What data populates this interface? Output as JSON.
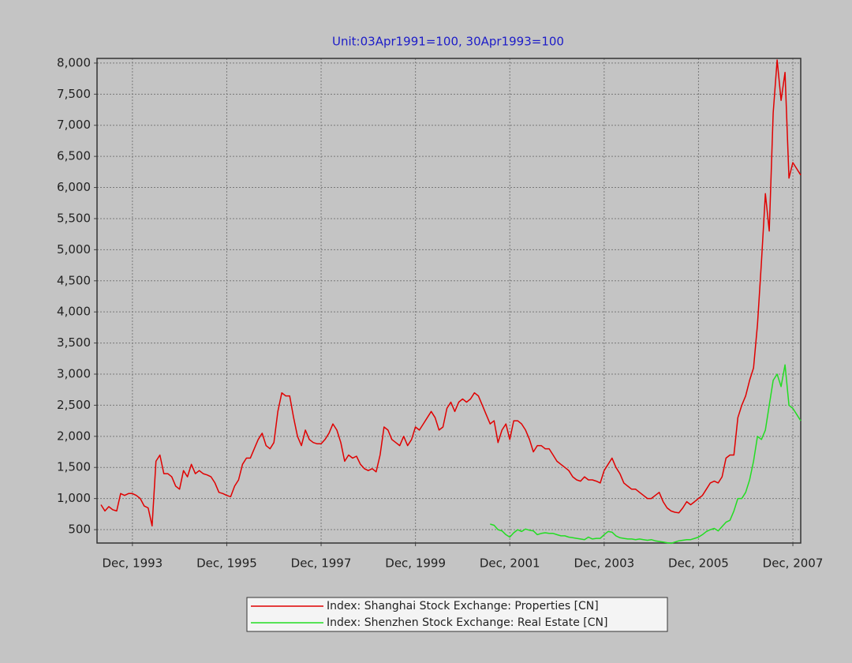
{
  "chart_data": {
    "type": "line",
    "title": "Unit:03Apr1991=100, 30Apr1993=100",
    "x": [
      "1993-04",
      "1993-05",
      "1993-06",
      "1993-07",
      "1993-08",
      "1993-09",
      "1993-10",
      "1993-11",
      "1993-12",
      "1994-01",
      "1994-02",
      "1994-03",
      "1994-04",
      "1994-05",
      "1994-06",
      "1994-07",
      "1994-08",
      "1994-09",
      "1994-10",
      "1994-11",
      "1994-12",
      "1995-01",
      "1995-02",
      "1995-03",
      "1995-04",
      "1995-05",
      "1995-06",
      "1995-07",
      "1995-08",
      "1995-09",
      "1995-10",
      "1995-11",
      "1995-12",
      "1996-01",
      "1996-02",
      "1996-03",
      "1996-04",
      "1996-05",
      "1996-06",
      "1996-07",
      "1996-08",
      "1996-09",
      "1996-10",
      "1996-11",
      "1996-12",
      "1997-01",
      "1997-02",
      "1997-03",
      "1997-04",
      "1997-05",
      "1997-06",
      "1997-07",
      "1997-08",
      "1997-09",
      "1997-10",
      "1997-11",
      "1997-12",
      "1998-01",
      "1998-02",
      "1998-03",
      "1998-04",
      "1998-05",
      "1998-06",
      "1998-07",
      "1998-08",
      "1998-09",
      "1998-10",
      "1998-11",
      "1998-12",
      "1999-01",
      "1999-02",
      "1999-03",
      "1999-04",
      "1999-05",
      "1999-06",
      "1999-07",
      "1999-08",
      "1999-09",
      "1999-10",
      "1999-11",
      "1999-12",
      "2000-01",
      "2000-02",
      "2000-03",
      "2000-04",
      "2000-05",
      "2000-06",
      "2000-07",
      "2000-08",
      "2000-09",
      "2000-10",
      "2000-11",
      "2000-12",
      "2001-01",
      "2001-02",
      "2001-03",
      "2001-04",
      "2001-05",
      "2001-06",
      "2001-07",
      "2001-08",
      "2001-09",
      "2001-10",
      "2001-11",
      "2001-12",
      "2002-01",
      "2002-02",
      "2002-03",
      "2002-04",
      "2002-05",
      "2002-06",
      "2002-07",
      "2002-08",
      "2002-09",
      "2002-10",
      "2002-11",
      "2002-12",
      "2003-01",
      "2003-02",
      "2003-03",
      "2003-04",
      "2003-05",
      "2003-06",
      "2003-07",
      "2003-08",
      "2003-09",
      "2003-10",
      "2003-11",
      "2003-12",
      "2004-01",
      "2004-02",
      "2004-03",
      "2004-04",
      "2004-05",
      "2004-06",
      "2004-07",
      "2004-08",
      "2004-09",
      "2004-10",
      "2004-11",
      "2004-12",
      "2005-01",
      "2005-02",
      "2005-03",
      "2005-04",
      "2005-05",
      "2005-06",
      "2005-07",
      "2005-08",
      "2005-09",
      "2005-10",
      "2005-11",
      "2005-12",
      "2006-01",
      "2006-02",
      "2006-03",
      "2006-04",
      "2006-05",
      "2006-06",
      "2006-07",
      "2006-08",
      "2006-09",
      "2006-10",
      "2006-11",
      "2006-12",
      "2007-01",
      "2007-02",
      "2007-03",
      "2007-04",
      "2007-05",
      "2007-06",
      "2007-07",
      "2007-08",
      "2007-09",
      "2007-10",
      "2007-11",
      "2007-12",
      "2008-01",
      "2008-02"
    ],
    "series": [
      {
        "name": "Index: Shanghai Stock Exchange: Properties [CN]",
        "color": "#e00000",
        "values": [
          900,
          800,
          870,
          820,
          800,
          1080,
          1050,
          1080,
          1080,
          1050,
          1000,
          880,
          850,
          560,
          1600,
          1700,
          1400,
          1400,
          1350,
          1200,
          1150,
          1450,
          1350,
          1550,
          1400,
          1450,
          1400,
          1380,
          1350,
          1250,
          1100,
          1080,
          1050,
          1030,
          1200,
          1300,
          1550,
          1650,
          1650,
          1800,
          1950,
          2050,
          1850,
          1800,
          1900,
          2400,
          2700,
          2650,
          2650,
          2300,
          2000,
          1850,
          2100,
          1950,
          1900,
          1880,
          1880,
          1950,
          2050,
          2200,
          2100,
          1900,
          1600,
          1700,
          1650,
          1680,
          1550,
          1480,
          1450,
          1480,
          1430,
          1700,
          2150,
          2100,
          1950,
          1900,
          1850,
          2000,
          1850,
          1950,
          2150,
          2100,
          2200,
          2300,
          2400,
          2300,
          2100,
          2150,
          2450,
          2550,
          2400,
          2550,
          2600,
          2550,
          2600,
          2700,
          2650,
          2500,
          2350,
          2200,
          2250,
          1900,
          2100,
          2200,
          1950,
          2250,
          2250,
          2200,
          2100,
          1950,
          1750,
          1850,
          1850,
          1800,
          1800,
          1700,
          1600,
          1550,
          1500,
          1450,
          1350,
          1300,
          1280,
          1350,
          1300,
          1300,
          1280,
          1250,
          1450,
          1550,
          1650,
          1500,
          1400,
          1250,
          1200,
          1150,
          1150,
          1100,
          1050,
          1000,
          1000,
          1050,
          1100,
          950,
          850,
          800,
          780,
          770,
          850,
          950,
          900,
          950,
          1000,
          1050,
          1150,
          1250,
          1280,
          1250,
          1350,
          1650,
          1700,
          1700,
          2300,
          2500,
          2650,
          2900,
          3100,
          3800,
          4800,
          5900,
          5300,
          7200,
          8050,
          7400,
          7850,
          6150,
          6400,
          6300,
          6200
        ]
      },
      {
        "name": "Index: Shenzhen Stock Exchange: Real Estate [CN]",
        "color": "#22dd22",
        "values": [
          null,
          null,
          null,
          null,
          null,
          null,
          null,
          null,
          null,
          null,
          null,
          null,
          null,
          null,
          null,
          null,
          null,
          null,
          null,
          null,
          null,
          null,
          null,
          null,
          null,
          null,
          null,
          null,
          null,
          null,
          null,
          null,
          null,
          null,
          null,
          null,
          null,
          null,
          null,
          null,
          null,
          null,
          null,
          null,
          null,
          null,
          null,
          null,
          null,
          null,
          null,
          null,
          null,
          null,
          null,
          null,
          null,
          null,
          null,
          null,
          null,
          null,
          null,
          null,
          null,
          null,
          null,
          null,
          null,
          null,
          null,
          null,
          null,
          null,
          null,
          null,
          null,
          null,
          null,
          null,
          null,
          null,
          null,
          null,
          null,
          null,
          null,
          null,
          null,
          null,
          null,
          null,
          null,
          null,
          null,
          null,
          null,
          null,
          null,
          590,
          570,
          500,
          480,
          420,
          380,
          450,
          500,
          470,
          510,
          490,
          480,
          420,
          440,
          450,
          440,
          440,
          420,
          400,
          400,
          380,
          370,
          360,
          350,
          340,
          380,
          350,
          360,
          360,
          420,
          470,
          460,
          400,
          370,
          360,
          350,
          350,
          340,
          350,
          340,
          330,
          340,
          320,
          310,
          300,
          290,
          280,
          300,
          320,
          330,
          340,
          340,
          360,
          380,
          420,
          470,
          500,
          520,
          480,
          550,
          620,
          650,
          800,
          1000,
          1000,
          1100,
          1300,
          1600,
          2000,
          1950,
          2100,
          2500,
          2900,
          3000,
          2800,
          3150,
          2500,
          2450,
          2350,
          2250
        ]
      }
    ],
    "xlim": [
      "1993-03",
      "2008-02"
    ],
    "xticks": [
      {
        "value": "1993-12",
        "label": "Dec, 1993"
      },
      {
        "value": "1995-12",
        "label": "Dec, 1995"
      },
      {
        "value": "1997-12",
        "label": "Dec, 1997"
      },
      {
        "value": "1999-12",
        "label": "Dec, 1999"
      },
      {
        "value": "2001-12",
        "label": "Dec, 2001"
      },
      {
        "value": "2003-12",
        "label": "Dec, 2003"
      },
      {
        "value": "2005-12",
        "label": "Dec, 2005"
      },
      {
        "value": "2007-12",
        "label": "Dec, 2007"
      }
    ],
    "ylim": [
      285,
      8075
    ],
    "yticks": [
      500,
      {
        "value": 1000,
        "label": "1,000"
      },
      {
        "value": 1500,
        "label": "1,500"
      },
      {
        "value": 2000,
        "label": "2,000"
      },
      {
        "value": 2500,
        "label": "2,500"
      },
      {
        "value": 3000,
        "label": "3,000"
      },
      {
        "value": 3500,
        "label": "3,500"
      },
      {
        "value": 4000,
        "label": "4,000"
      },
      {
        "value": 4500,
        "label": "4,500"
      },
      {
        "value": 5000,
        "label": "5,000"
      },
      {
        "value": 5500,
        "label": "5,500"
      },
      {
        "value": 6000,
        "label": "6,000"
      },
      {
        "value": 6500,
        "label": "6,500"
      },
      {
        "value": 7000,
        "label": "7,000"
      },
      {
        "value": 7500,
        "label": "7,500"
      },
      {
        "value": 8000,
        "label": "8,000"
      }
    ],
    "grid": true
  }
}
